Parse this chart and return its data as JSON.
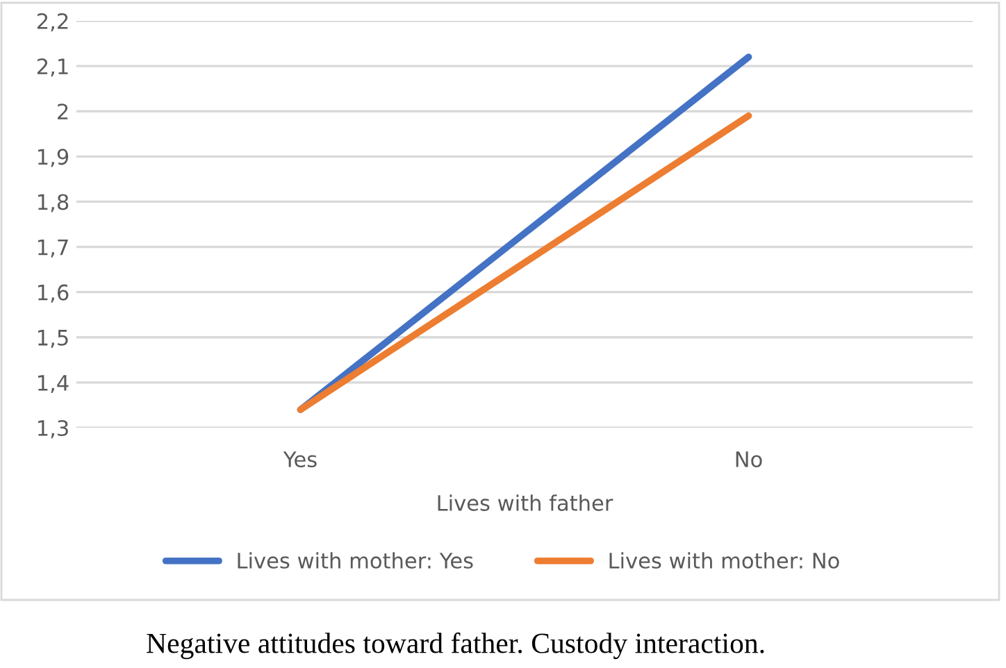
{
  "chart_data": {
    "type": "line",
    "xlabel": "Lives with father",
    "categories": [
      "Yes",
      "No"
    ],
    "series": [
      {
        "name": "Lives with mother: Yes",
        "color": "#4472c4",
        "values": [
          1.34,
          2.12
        ]
      },
      {
        "name": "Lives with mother: No",
        "color": "#ed7d31",
        "values": [
          1.34,
          1.99
        ]
      }
    ],
    "ylim": [
      1.3,
      2.2
    ],
    "yticks": [
      {
        "value": 1.3,
        "label": "1,3"
      },
      {
        "value": 1.4,
        "label": "1,4"
      },
      {
        "value": 1.5,
        "label": "1,5"
      },
      {
        "value": 1.6,
        "label": "1,6"
      },
      {
        "value": 1.7,
        "label": "1,7"
      },
      {
        "value": 1.8,
        "label": "1,8"
      },
      {
        "value": 1.9,
        "label": "1,9"
      },
      {
        "value": 2.0,
        "label": "2"
      },
      {
        "value": 2.1,
        "label": "2,1"
      },
      {
        "value": 2.2,
        "label": "2,2"
      }
    ],
    "grid": "y",
    "legend": "bottom",
    "marker": "none",
    "line_style": "solid",
    "annotations": [
      "Negative attitudes toward father. Custody interaction."
    ]
  }
}
